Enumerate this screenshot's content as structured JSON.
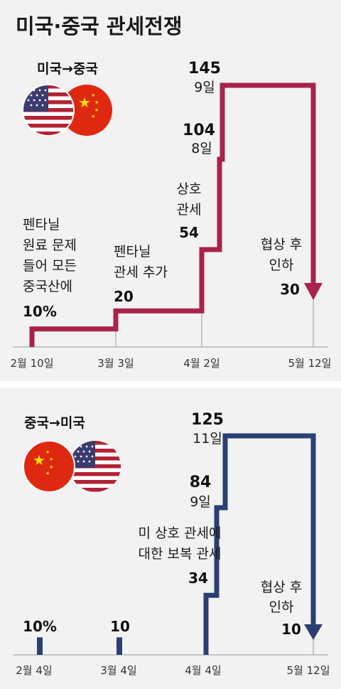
{
  "title": "미국·중국 관세전쟁",
  "colors": {
    "us_to_china": "#a8234a",
    "china_to_us": "#2b3f73",
    "panel_bg": "#f2f2f2"
  },
  "chart_data": [
    {
      "type": "line",
      "subtitle": "미국→중국",
      "icons": [
        "us-flag-icon",
        "china-flag-icon"
      ],
      "x": [
        "2월 10일",
        "3월 3일",
        "4월 2일",
        "4월 8일",
        "4월 9일",
        "5월 12일"
      ],
      "values": [
        10,
        20,
        54,
        104,
        145,
        30
      ],
      "ylim": [
        0,
        145
      ],
      "x_ticks": [
        "2월 10일",
        "3월 3일",
        "4월 2일",
        "5월 12일"
      ],
      "annotations": [
        {
          "lines": [
            "펜타닐",
            "원료 문제",
            "들어 모든",
            "중국산에"
          ],
          "value": "10%"
        },
        {
          "lines": [
            "펜타닐",
            "관세 추가"
          ],
          "value": "20"
        },
        {
          "lines": [
            "상호",
            "관세"
          ],
          "value": "54"
        },
        {
          "lines": [],
          "value": "104",
          "date": "8일"
        },
        {
          "lines": [],
          "value": "145",
          "date": "9일"
        },
        {
          "lines": [
            "협상 후",
            "인하"
          ],
          "value": "30"
        }
      ]
    },
    {
      "type": "line",
      "subtitle": "중국→미국",
      "icons": [
        "china-flag-icon",
        "us-flag-icon"
      ],
      "x": [
        "2월 4일",
        "3월 4일",
        "4월 4일",
        "4월 9일",
        "4월 11일",
        "5월 12일"
      ],
      "values": [
        10,
        10,
        34,
        84,
        125,
        10
      ],
      "ylim": [
        0,
        125
      ],
      "x_ticks": [
        "2월 4일",
        "3월 4일",
        "4월 4일",
        "5월 12일"
      ],
      "annotations": [
        {
          "lines": [],
          "value": "10%"
        },
        {
          "lines": [],
          "value": "10"
        },
        {
          "lines": [
            "미 상호 관세에",
            "대한 보복 관세"
          ],
          "value": "34"
        },
        {
          "lines": [],
          "value": "84",
          "date": "9일"
        },
        {
          "lines": [],
          "value": "125",
          "date": "11일"
        },
        {
          "lines": [
            "협상 후",
            "인하"
          ],
          "value": "10"
        }
      ]
    }
  ]
}
